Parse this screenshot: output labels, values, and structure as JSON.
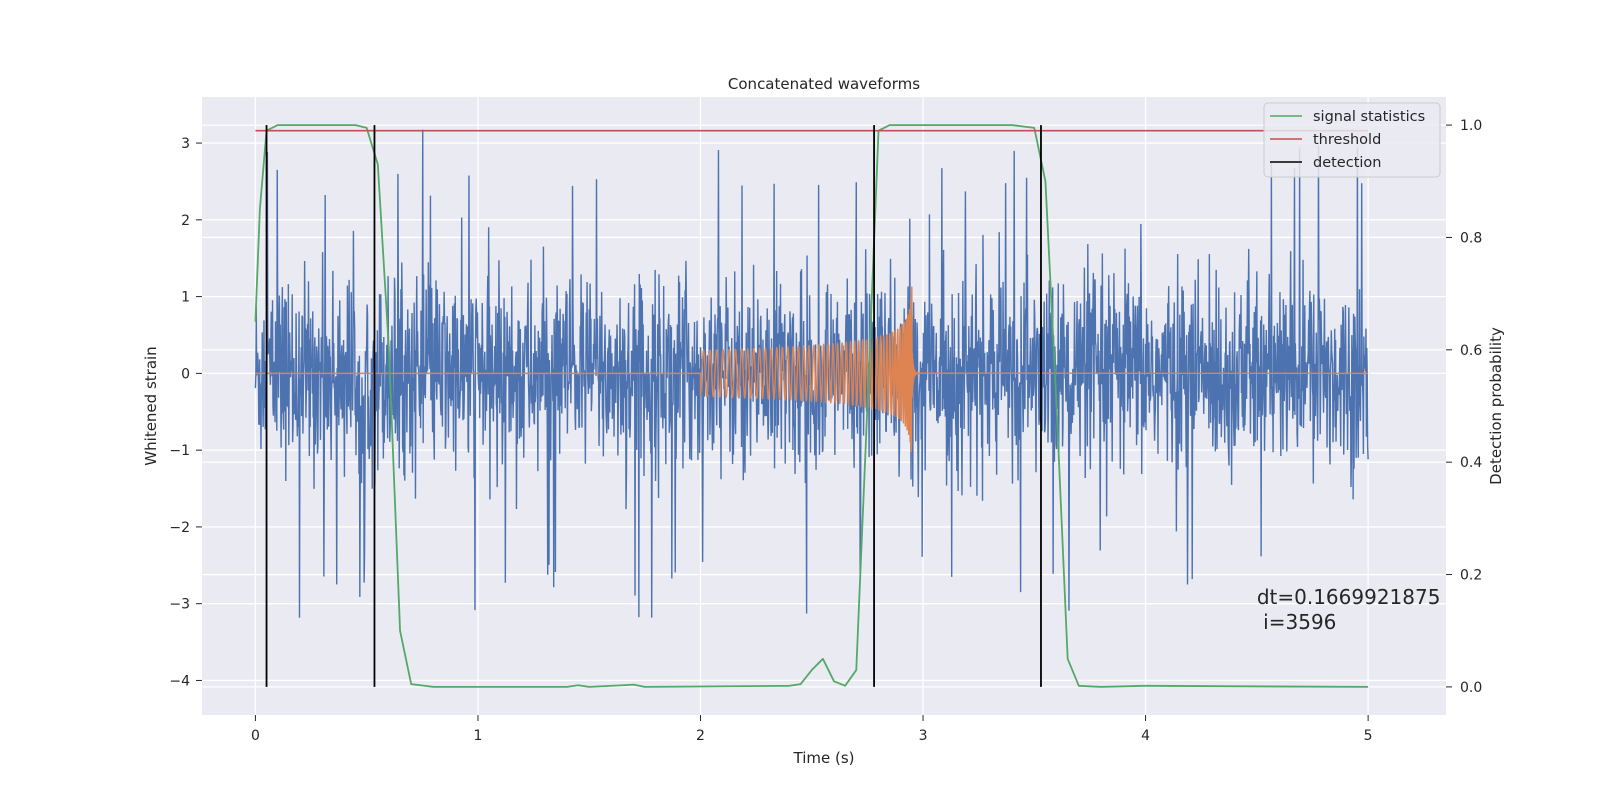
{
  "chart_data": {
    "type": "line",
    "title": "Concatenated waveforms",
    "xlabel": "Time (s)",
    "ylabel": "Whitened strain",
    "ylabel_right": "Detection probability",
    "xlim": [
      -0.24,
      5.35
    ],
    "ylim": [
      -4.45,
      3.6
    ],
    "ylim_right": [
      -0.05,
      1.05
    ],
    "x_ticks": [
      0,
      1,
      2,
      3,
      4,
      5
    ],
    "y_ticks": [
      -4,
      -3,
      -2,
      -1,
      0,
      1,
      2,
      3
    ],
    "y_ticks_right": [
      0.0,
      0.2,
      0.4,
      0.6,
      0.8,
      1.0
    ],
    "x_tick_labels": [
      "0",
      "1",
      "2",
      "3",
      "4",
      "5"
    ],
    "y_tick_labels": [
      "−4",
      "−3",
      "−2",
      "−1",
      "0",
      "1",
      "2",
      "3"
    ],
    "y_tick_labels_right": [
      "0.0",
      "0.2",
      "0.4",
      "0.6",
      "0.8",
      "1.0"
    ],
    "grid": true,
    "legend_position": "top-right",
    "series": [
      {
        "name": "strain",
        "axis": "left",
        "color": "#4c72b0",
        "style": "noise",
        "x_range": [
          0,
          5
        ],
        "typical_amplitude": 1.3,
        "peak_amplitude": 3.3,
        "min_value": -4.1
      },
      {
        "name": "injected chirp",
        "axis": "left",
        "color": "#dd8452",
        "style": "chirp",
        "x_range": [
          0,
          5
        ],
        "chirp_start": 2.0,
        "chirp_merger": 2.95,
        "amplitude_start": 0.3,
        "amplitude_peak": 2.1
      },
      {
        "name": "signal statistics",
        "axis": "right",
        "color": "#55a868",
        "x": [
          0.0,
          0.02,
          0.05,
          0.1,
          0.45,
          0.5,
          0.55,
          0.6,
          0.65,
          0.7,
          0.8,
          1.4,
          1.45,
          1.5,
          1.65,
          1.7,
          1.75,
          2.4,
          2.45,
          2.5,
          2.55,
          2.6,
          2.65,
          2.7,
          2.75,
          2.8,
          2.85,
          3.4,
          3.5,
          3.55,
          3.6,
          3.65,
          3.7,
          3.8,
          4.0,
          5.0
        ],
        "y": [
          0.65,
          0.85,
          0.99,
          1.0,
          1.0,
          0.995,
          0.93,
          0.6,
          0.1,
          0.005,
          0.0,
          0.0,
          0.003,
          0.0,
          0.003,
          0.004,
          0.0,
          0.002,
          0.005,
          0.03,
          0.05,
          0.01,
          0.002,
          0.03,
          0.5,
          0.99,
          1.0,
          1.0,
          0.995,
          0.9,
          0.5,
          0.05,
          0.002,
          0.0,
          0.002,
          0.0
        ]
      },
      {
        "name": "threshold",
        "axis": "right",
        "color": "#c44e52",
        "x": [
          0,
          5
        ],
        "y": [
          0.99,
          0.99
        ]
      },
      {
        "name": "detection",
        "axis": "right",
        "color": "#000000",
        "vlines": [
          0.05,
          0.535,
          2.78,
          3.53
        ],
        "vline_range": [
          0.0,
          1.0
        ]
      }
    ],
    "annotation": {
      "lines": [
        "dt=0.1669921875",
        " i=3596"
      ],
      "x": 4.5,
      "y_right": 0.11
    }
  }
}
